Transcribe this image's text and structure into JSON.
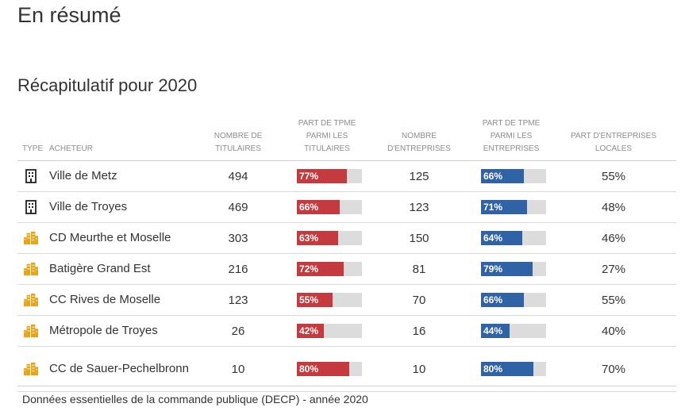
{
  "page": {
    "title": "En résumé",
    "section_title": "Récapitulatif pour 2020",
    "footer": "Données essentielles de la commande publique (DECP) - année 2020"
  },
  "colors": {
    "tpme_bar": "#c43a3f",
    "entreprises_bar": "#2f63a6",
    "bar_track": "#dcdcdc",
    "multi_building_icon": "#e8a317"
  },
  "table": {
    "headers": {
      "type": "TYPE",
      "buyer": "ACHETEUR",
      "titulaires": [
        "NOMBRE DE",
        "TITULAIRES"
      ],
      "tpme_titulaires": [
        "PART DE TPME",
        "PARMI LES",
        "TITULAIRES"
      ],
      "entreprises": [
        "NOMBRE",
        "D'ENTREPRISES"
      ],
      "tpme_entreprises": [
        "PART DE TPME",
        "PARMI LES",
        "ENTREPRISES"
      ],
      "locales": [
        "PART D'ENTREPRISES",
        "LOCALES"
      ]
    },
    "rows": [
      {
        "icon": "building-icon",
        "buyer": "Ville de Metz",
        "titulaires": "494",
        "tpme_titulaires": 77,
        "tpme_titulaires_label": "77%",
        "entreprises": "125",
        "tpme_entreprises": 66,
        "tpme_entreprises_label": "66%",
        "locales": "55%"
      },
      {
        "icon": "building-icon",
        "buyer": "Ville de Troyes",
        "titulaires": "469",
        "tpme_titulaires": 66,
        "tpme_titulaires_label": "66%",
        "entreprises": "123",
        "tpme_entreprises": 71,
        "tpme_entreprises_label": "71%",
        "locales": "48%"
      },
      {
        "icon": "city-icon",
        "buyer": "CD Meurthe et Moselle",
        "titulaires": "303",
        "tpme_titulaires": 63,
        "tpme_titulaires_label": "63%",
        "entreprises": "150",
        "tpme_entreprises": 64,
        "tpme_entreprises_label": "64%",
        "locales": "46%"
      },
      {
        "icon": "city-icon",
        "buyer": "Batigère Grand Est",
        "titulaires": "216",
        "tpme_titulaires": 72,
        "tpme_titulaires_label": "72%",
        "entreprises": "81",
        "tpme_entreprises": 79,
        "tpme_entreprises_label": "79%",
        "locales": "27%"
      },
      {
        "icon": "city-icon",
        "buyer": "CC Rives de Moselle",
        "titulaires": "123",
        "tpme_titulaires": 55,
        "tpme_titulaires_label": "55%",
        "entreprises": "70",
        "tpme_entreprises": 66,
        "tpme_entreprises_label": "66%",
        "locales": "55%"
      },
      {
        "icon": "city-icon",
        "buyer": "Métropole de Troyes",
        "titulaires": "26",
        "tpme_titulaires": 42,
        "tpme_titulaires_label": "42%",
        "entreprises": "16",
        "tpme_entreprises": 44,
        "tpme_entreprises_label": "44%",
        "locales": "40%"
      },
      {
        "icon": "city-icon",
        "buyer": "CC de Sauer-Pechelbronn",
        "titulaires": "10",
        "tpme_titulaires": 80,
        "tpme_titulaires_label": "80%",
        "entreprises": "10",
        "tpme_entreprises": 80,
        "tpme_entreprises_label": "80%",
        "locales": "70%"
      }
    ]
  }
}
